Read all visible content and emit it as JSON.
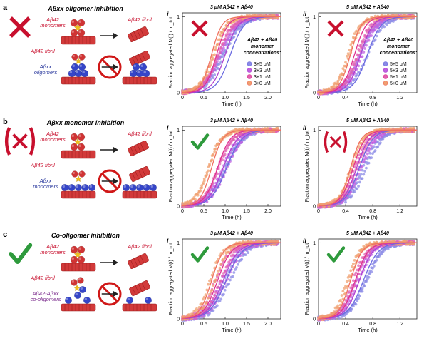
{
  "rows": [
    {
      "letter": "a",
      "title": "Aβxx oligomer inhibition",
      "mark": "cross",
      "monomers_label": [
        "Aβ42",
        "monomers"
      ],
      "fibril_product_label": "Aβ42 fibril",
      "seed_label": "Aβ42 fibril",
      "species_label": [
        "Aβxx",
        "oligomers"
      ],
      "species_color": "#2b3a9e",
      "scheme": "oligomer"
    },
    {
      "letter": "b",
      "title": "Aβxx monomer inhibition",
      "mark": "paren-cross",
      "monomers_label": [
        "Aβ42",
        "monomers"
      ],
      "fibril_product_label": "Aβ42 fibril",
      "seed_label": "Aβ42 fibril",
      "species_label": [
        "Aβxx",
        "monomers"
      ],
      "species_color": "#2b3a9e",
      "scheme": "monomer"
    },
    {
      "letter": "c",
      "title": "Co-oligomer inhibition",
      "mark": "check",
      "monomers_label": [
        "Aβ42",
        "monomers"
      ],
      "fibril_product_label": "Aβ42 fibril",
      "seed_label": "Aβ42 fibril",
      "species_label": [
        "Aβ42-Aβxx",
        "co-oligomers"
      ],
      "species_color": "#7a2a8c",
      "scheme": "cooligomer"
    }
  ],
  "colors": {
    "cross": "#c8102e",
    "check": "#2e9a3c",
    "red_label": "#c8102e",
    "blue_label": "#2b3a9e",
    "purple_label": "#7a2a8c",
    "red_sphere": "#d03434",
    "blue_sphere": "#3545c8",
    "star": "#f0c020"
  },
  "legend": {
    "title": [
      "Aβ42 + Aβ40",
      "monomer",
      "concentrations:"
    ],
    "panel_i": [
      "3+5 μM",
      "3+3 μM",
      "3+1 μM",
      "3+0 μM"
    ],
    "panel_ii": [
      "5+5 μM",
      "5+3 μM",
      "5+1 μM",
      "5+0 μM"
    ],
    "series_colors": [
      "#8a8ae6",
      "#c060e0",
      "#e060b0",
      "#f0a070"
    ],
    "line_colors": [
      "#6a6ae0",
      "#b040d0",
      "#e03090",
      "#f07060"
    ]
  },
  "chart_data": [
    {
      "type": "scatter",
      "panel": "a-i",
      "roman": "i",
      "title": "3 μM Aβ42 + Aβ40",
      "mark": "cross",
      "xlabel": "Time (h)",
      "ylabel": "Fraction aggregated M(t) / m_tot",
      "xlim": [
        0,
        2.3
      ],
      "ylim": [
        0,
        1.05
      ],
      "xticks": [
        0,
        0.5,
        1.0,
        1.5,
        2.0
      ],
      "yticks": [
        0,
        1
      ],
      "series": [
        {
          "name": "3+5 μM",
          "data_half_time": 1.02,
          "data_width": 0.2,
          "fit_half_time": 1.12,
          "fit_width": 0.16
        },
        {
          "name": "3+3 μM",
          "data_half_time": 0.95,
          "data_width": 0.19,
          "fit_half_time": 1.0,
          "fit_width": 0.15
        },
        {
          "name": "3+1 μM",
          "data_half_time": 0.82,
          "data_width": 0.17,
          "fit_half_time": 0.8,
          "fit_width": 0.13
        },
        {
          "name": "3+0 μM",
          "data_half_time": 0.68,
          "data_width": 0.15,
          "fit_half_time": 0.68,
          "fit_width": 0.12
        }
      ]
    },
    {
      "type": "scatter",
      "panel": "a-ii",
      "roman": "ii",
      "title": "5 μM Aβ42 + Aβ40",
      "mark": "cross",
      "xlabel": "Time (h)",
      "ylabel": "Fraction aggregated M(t) / m_tot",
      "xlim": [
        0,
        1.45
      ],
      "ylim": [
        0,
        1.05
      ],
      "xticks": [
        0,
        0.4,
        0.8,
        1.2
      ],
      "yticks": [
        0,
        1
      ],
      "series": [
        {
          "name": "5+5 μM",
          "data_half_time": 0.66,
          "data_width": 0.12,
          "fit_half_time": 0.72,
          "fit_width": 0.1
        },
        {
          "name": "5+3 μM",
          "data_half_time": 0.6,
          "data_width": 0.11,
          "fit_half_time": 0.62,
          "fit_width": 0.09
        },
        {
          "name": "5+1 μM",
          "data_half_time": 0.54,
          "data_width": 0.1,
          "fit_half_time": 0.53,
          "fit_width": 0.085
        },
        {
          "name": "5+0 μM",
          "data_half_time": 0.47,
          "data_width": 0.09,
          "fit_half_time": 0.47,
          "fit_width": 0.08
        }
      ]
    },
    {
      "type": "scatter",
      "panel": "b-i",
      "roman": "i",
      "title": "3 μM Aβ42 + Aβ40",
      "mark": "check",
      "xlabel": "Time (h)",
      "ylabel": "Fraction aggregated M(t) / m_tot",
      "xlim": [
        0,
        2.3
      ],
      "ylim": [
        0,
        1.05
      ],
      "xticks": [
        0,
        0.5,
        1.0,
        1.5,
        2.0
      ],
      "yticks": [
        0,
        1
      ],
      "series": [
        {
          "name": "3+5 μM",
          "data_half_time": 1.02,
          "data_width": 0.2,
          "fit_half_time": 1.03,
          "fit_width": 0.18
        },
        {
          "name": "3+3 μM",
          "data_half_time": 0.95,
          "data_width": 0.19,
          "fit_half_time": 0.95,
          "fit_width": 0.17
        },
        {
          "name": "3+1 μM",
          "data_half_time": 0.82,
          "data_width": 0.17,
          "fit_half_time": 0.82,
          "fit_width": 0.15
        },
        {
          "name": "3+0 μM",
          "data_half_time": 0.68,
          "data_width": 0.15,
          "fit_half_time": 0.68,
          "fit_width": 0.13
        }
      ]
    },
    {
      "type": "scatter",
      "panel": "b-ii",
      "roman": "ii",
      "title": "5 μM Aβ42 + Aβ40",
      "mark": "paren-cross",
      "xlabel": "Time (h)",
      "ylabel": "Fraction aggregated M(t) / m_tot",
      "xlim": [
        0,
        1.45
      ],
      "ylim": [
        0,
        1.05
      ],
      "xticks": [
        0,
        0.4,
        0.8,
        1.2
      ],
      "yticks": [
        0,
        1
      ],
      "series": [
        {
          "name": "5+5 μM",
          "data_half_time": 0.66,
          "data_width": 0.12,
          "fit_half_time": 0.6,
          "fit_width": 0.1
        },
        {
          "name": "5+3 μM",
          "data_half_time": 0.6,
          "data_width": 0.11,
          "fit_half_time": 0.56,
          "fit_width": 0.095
        },
        {
          "name": "5+1 μM",
          "data_half_time": 0.54,
          "data_width": 0.1,
          "fit_half_time": 0.51,
          "fit_width": 0.09
        },
        {
          "name": "5+0 μM",
          "data_half_time": 0.47,
          "data_width": 0.09,
          "fit_half_time": 0.47,
          "fit_width": 0.08
        }
      ]
    },
    {
      "type": "scatter",
      "panel": "c-i",
      "roman": "i",
      "title": "3 μM Aβ42 + Aβ40",
      "mark": "check",
      "xlabel": "Time (h)",
      "ylabel": "Fraction aggregated M(t) / m_tot",
      "xlim": [
        0,
        2.3
      ],
      "ylim": [
        0,
        1.05
      ],
      "xticks": [
        0,
        0.5,
        1.0,
        1.5,
        2.0
      ],
      "yticks": [
        0,
        1
      ],
      "series": [
        {
          "name": "3+5 μM",
          "data_half_time": 1.02,
          "data_width": 0.2,
          "fit_half_time": 1.02,
          "fit_width": 0.19
        },
        {
          "name": "3+3 μM",
          "data_half_time": 0.95,
          "data_width": 0.19,
          "fit_half_time": 0.95,
          "fit_width": 0.18
        },
        {
          "name": "3+1 μM",
          "data_half_time": 0.82,
          "data_width": 0.17,
          "fit_half_time": 0.82,
          "fit_width": 0.16
        },
        {
          "name": "3+0 μM",
          "data_half_time": 0.68,
          "data_width": 0.15,
          "fit_half_time": 0.68,
          "fit_width": 0.14
        }
      ]
    },
    {
      "type": "scatter",
      "panel": "c-ii",
      "roman": "ii",
      "title": "5 μM Aβ42 + Aβ40",
      "mark": "check",
      "xlabel": "Time (h)",
      "ylabel": "Fraction aggregated M(t) / m_tot",
      "xlim": [
        0,
        1.45
      ],
      "ylim": [
        0,
        1.05
      ],
      "xticks": [
        0,
        0.4,
        0.8,
        1.2
      ],
      "yticks": [
        0,
        1
      ],
      "series": [
        {
          "name": "5+5 μM",
          "data_half_time": 0.66,
          "data_width": 0.12,
          "fit_half_time": 0.66,
          "fit_width": 0.11
        },
        {
          "name": "5+3 μM",
          "data_half_time": 0.6,
          "data_width": 0.11,
          "fit_half_time": 0.6,
          "fit_width": 0.1
        },
        {
          "name": "5+1 μM",
          "data_half_time": 0.54,
          "data_width": 0.1,
          "fit_half_time": 0.54,
          "fit_width": 0.095
        },
        {
          "name": "5+0 μM",
          "data_half_time": 0.47,
          "data_width": 0.09,
          "fit_half_time": 0.47,
          "fit_width": 0.085
        }
      ]
    }
  ]
}
